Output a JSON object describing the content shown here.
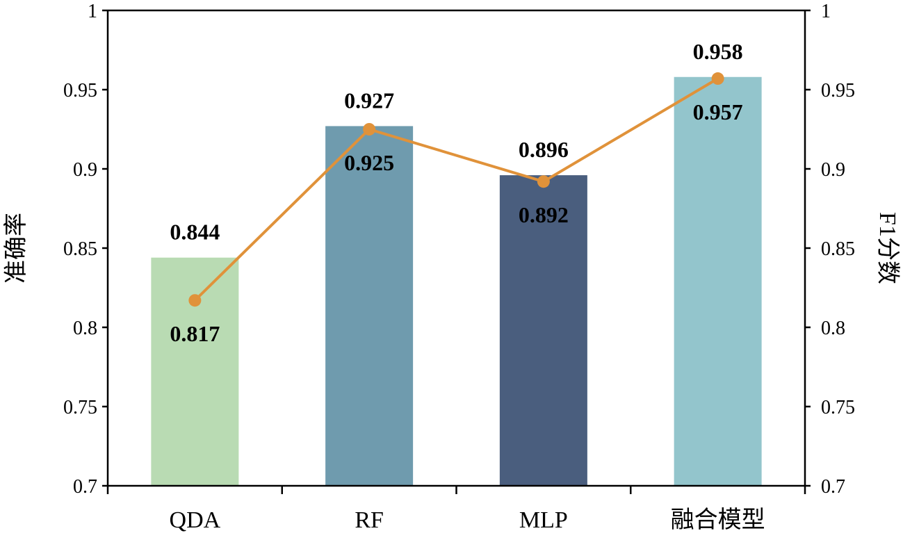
{
  "chart_data": {
    "type": "bar+line",
    "categories": [
      "QDA",
      "RF",
      "MLP",
      "融合模型"
    ],
    "series": [
      {
        "name": "准确率",
        "type": "bar",
        "axis": "left",
        "values": [
          0.844,
          0.927,
          0.896,
          0.958
        ],
        "labels": [
          "0.844",
          "0.927",
          "0.896",
          "0.958"
        ],
        "colors": [
          "#b9dbb3",
          "#6f9bae",
          "#4a5e7e",
          "#93c5cc"
        ]
      },
      {
        "name": "F1分数",
        "type": "line",
        "axis": "right",
        "values": [
          0.817,
          0.925,
          0.892,
          0.957
        ],
        "labels": [
          "0.817",
          "0.925",
          "0.892",
          "0.957"
        ],
        "color": "#e0923a"
      }
    ],
    "ylabel": "准确率",
    "y2label": "F1分数",
    "ylim": [
      0.7,
      1
    ],
    "y2lim": [
      0.7,
      1
    ],
    "yticks": [
      "0.7",
      "0.75",
      "0.8",
      "0.85",
      "0.9",
      "0.95",
      "1"
    ],
    "y2ticks": [
      "0.7",
      "0.75",
      "0.8",
      "0.85",
      "0.9",
      "0.95",
      "1"
    ],
    "grid": false,
    "legend": "none"
  }
}
